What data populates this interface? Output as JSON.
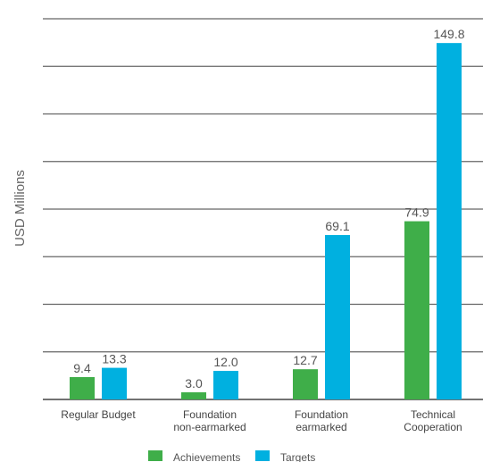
{
  "chart_data": {
    "type": "bar",
    "title": "",
    "xlabel": "",
    "ylabel": "USD Millions",
    "ylim": [
      0,
      160
    ],
    "gridlines": [
      20,
      40,
      60,
      80,
      100,
      120,
      140,
      160
    ],
    "grid": true,
    "legend_position": "bottom",
    "categories": [
      [
        "Regular Budget"
      ],
      [
        "Foundation",
        "non-earmarked"
      ],
      [
        "Foundation",
        "earmarked"
      ],
      [
        "Technical",
        "Cooperation"
      ]
    ],
    "series": [
      {
        "name": "Achievements",
        "color": "#3fae49",
        "values": [
          9.4,
          3.0,
          12.7,
          74.9
        ],
        "labels": [
          "9.4",
          "3.0",
          "12.7",
          "74.9"
        ]
      },
      {
        "name": "Targets",
        "color": "#00b0e0",
        "values": [
          13.3,
          12.0,
          69.1,
          149.8
        ],
        "labels": [
          "13.3",
          "12.0",
          "69.1",
          "149.8"
        ]
      }
    ]
  }
}
